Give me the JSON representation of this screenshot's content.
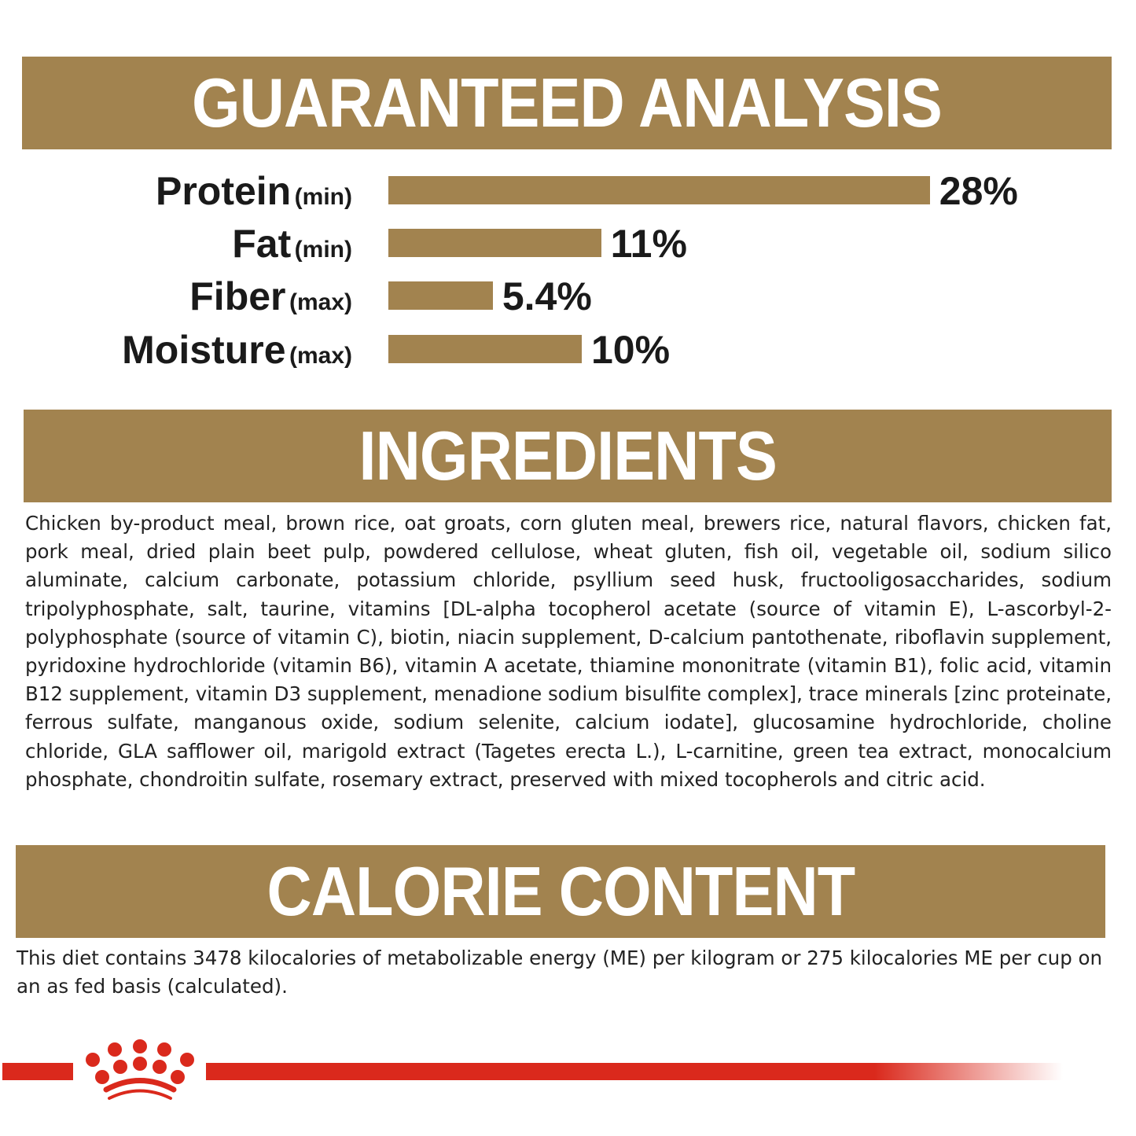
{
  "analysis": {
    "title": "GUARANTEED ANALYSIS",
    "items": [
      {
        "name": "Protein",
        "qualifier": "(min)",
        "value": 28,
        "label": "28%"
      },
      {
        "name": "Fat",
        "qualifier": "(min)",
        "value": 11,
        "label": "11%"
      },
      {
        "name": "Fiber",
        "qualifier": "(max)",
        "value": 5.4,
        "label": "5.4%"
      },
      {
        "name": "Moisture",
        "qualifier": "(max)",
        "value": 10,
        "label": "10%"
      }
    ]
  },
  "ingredients": {
    "title": "INGREDIENTS",
    "text": "Chicken by-product meal, brown rice, oat groats, corn gluten meal, brewers rice, natural flavors, chicken fat, pork meal, dried plain beet pulp, powdered cellulose, wheat gluten, fish oil, vegetable oil, sodium silico aluminate, calcium carbonate, potassium chloride, psyllium seed husk, fructooligosaccharides, sodium tripolyphosphate, salt, taurine, vitamins [DL-alpha tocopherol acetate (source of vitamin E), L-ascorbyl-2-polyphosphate (source of vitamin C), biotin, niacin supplement, D-calcium pantothenate, riboflavin supplement, pyridoxine hydrochloride (vitamin B6), vitamin A acetate, thiamine mononitrate (vitamin B1), folic acid, vitamin B12 supplement, vitamin D3 supplement, menadione sodium bisulfite complex], trace minerals [zinc proteinate, ferrous sulfate, manganous oxide, sodium selenite, calcium iodate], glucosamine hydrochloride, choline chloride, GLA safflower oil, marigold extract (Tagetes erecta L.), L-carnitine, green tea extract, monocalcium phosphate, chondroitin sulfate, rosemary extract, preserved with mixed tocopherols and citric acid."
  },
  "calorie": {
    "title": "CALORIE CONTENT",
    "text": "This diet contains 3478 kilocalories of metabolizable energy (ME) per kilogram or 275 kilocalories ME per cup on an as fed basis (calculated)."
  },
  "colors": {
    "accent": "#A2834F",
    "brand_red": "#DA291C"
  },
  "logo": "royal-canin-crown-logo"
}
